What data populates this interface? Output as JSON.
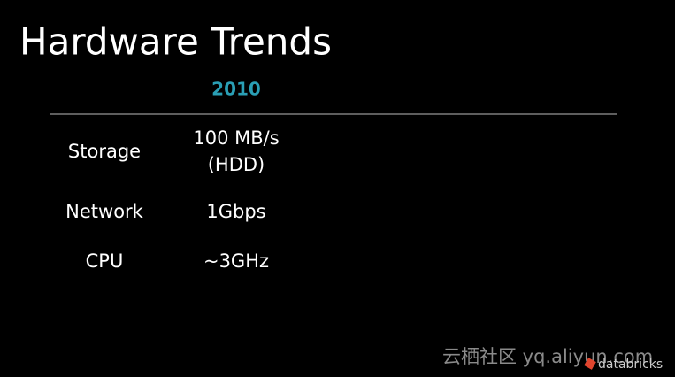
{
  "slide": {
    "title": "Hardware Trends",
    "table": {
      "columns": [
        "2010"
      ],
      "rows": [
        {
          "label": "Storage",
          "value": [
            "100 MB/s",
            "(HDD)"
          ]
        },
        {
          "label": "Network",
          "value": [
            "1Gbps"
          ]
        },
        {
          "label": "CPU",
          "value": [
            "~3GHz"
          ]
        }
      ]
    },
    "watermark": "云栖社区 yq.aliyun.com",
    "logo": "databricks"
  }
}
